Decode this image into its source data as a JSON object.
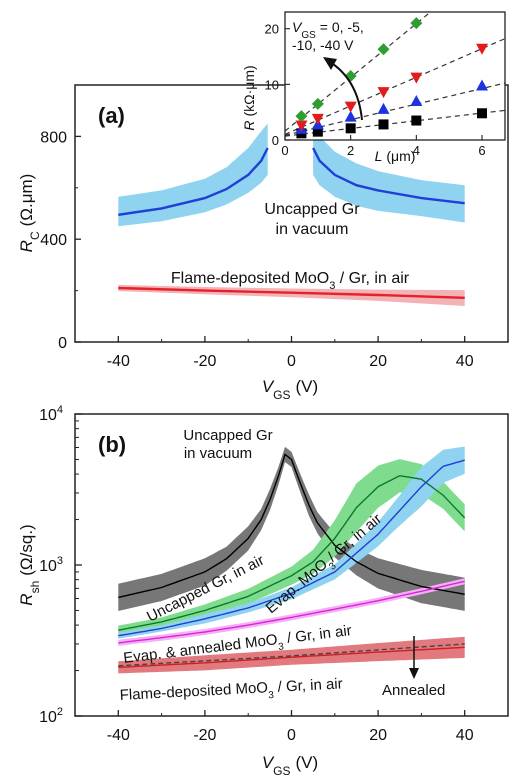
{
  "chart_data": [
    {
      "type": "line",
      "panel": "(a)",
      "xlabel_main": "V",
      "xlabel_sub": "GS",
      "xlabel_unit": "(V)",
      "ylabel_main": "R",
      "ylabel_sub": "C",
      "ylabel_unit": "(Ω.μm)",
      "xlim": [
        -50,
        50
      ],
      "ylim": [
        0,
        1000
      ],
      "xticks": [
        -40,
        -20,
        0,
        20,
        40
      ],
      "yticks": [
        0,
        400,
        800
      ],
      "series": [
        {
          "color": "#1f3fd6",
          "band_color": "#8fd3f0",
          "x": [
            -40,
            -30,
            -20,
            -15,
            -10,
            -7,
            -5.5
          ],
          "y": [
            495,
            520,
            560,
            595,
            650,
            705,
            755
          ],
          "lo": [
            450,
            470,
            505,
            535,
            580,
            620,
            650
          ],
          "hi": [
            565,
            590,
            635,
            680,
            755,
            820,
            850
          ]
        },
        {
          "color": "#1f3fd6",
          "band_color": "#8fd3f0",
          "x": [
            5,
            6.5,
            10,
            15,
            20,
            30,
            40
          ],
          "y": [
            755,
            705,
            650,
            610,
            590,
            560,
            540
          ],
          "lo": [
            650,
            610,
            565,
            530,
            510,
            490,
            465
          ],
          "hi": [
            850,
            800,
            740,
            695,
            665,
            630,
            610
          ]
        },
        {
          "color": "#e8202a",
          "band_color": "#f2b3b7",
          "x": [
            -40,
            -20,
            0,
            20,
            40
          ],
          "y": [
            210,
            200,
            192,
            183,
            172
          ],
          "lo": [
            198,
            186,
            174,
            160,
            140
          ],
          "hi": [
            222,
            214,
            208,
            204,
            202
          ]
        }
      ],
      "annotations": [
        {
          "lines": [
            "Uncapped Gr",
            "in vacuum"
          ]
        },
        {
          "text": "Flame-deposited MoO",
          "sub": "3",
          "rest": " / Gr, in air"
        }
      ],
      "inset": {
        "xlabel_main": "L",
        "xlabel_unit": "(μm)",
        "ylabel_main": "R",
        "ylabel_unit": "(kΩ·μm)",
        "xlim": [
          0,
          6.7
        ],
        "ylim": [
          0,
          23
        ],
        "xticks": [
          0,
          2,
          4,
          6
        ],
        "yticks": [
          0,
          10,
          20
        ],
        "legend_lines": [
          "= 0, -5,",
          "-10, -40 V"
        ],
        "legend_v": "V",
        "legend_sub": "GS",
        "series": [
          {
            "marker": "square",
            "color": "#000000",
            "x": [
              0.5,
              1,
              2,
              3,
              4,
              6
            ],
            "y": [
              1.2,
              1.5,
              2.1,
              2.8,
              3.5,
              4.8
            ],
            "fit": [
              0.7,
              0.69
            ]
          },
          {
            "marker": "triangle-up",
            "color": "#1d32e0",
            "x": [
              0.5,
              1,
              2,
              3,
              4,
              6
            ],
            "y": [
              2.0,
              2.8,
              4.2,
              5.6,
              7.0,
              9.8
            ],
            "fit": [
              0.85,
              1.4
            ]
          },
          {
            "marker": "triangle-down",
            "color": "#e51b1b",
            "x": [
              0.5,
              1,
              2,
              3,
              4,
              6
            ],
            "y": [
              2.6,
              3.8,
              6.0,
              8.6,
              11.2,
              16.4
            ],
            "fit": [
              1.0,
              2.57
            ]
          },
          {
            "marker": "diamond",
            "color": "#2e9e2e",
            "x": [
              0.5,
              1,
              2,
              3,
              4
            ],
            "y": [
              4.3,
              6.5,
              11.5,
              16.3,
              21.0
            ],
            "fit": [
              1.6,
              4.83
            ]
          }
        ]
      }
    },
    {
      "type": "line",
      "panel": "(b)",
      "yscale": "log",
      "xlabel_main": "V",
      "xlabel_sub": "GS",
      "xlabel_unit": "(V)",
      "ylabel_main": "R",
      "ylabel_sub": "sh",
      "ylabel_unit": "(Ω/sq.)",
      "xlim": [
        -50,
        50
      ],
      "ylim": [
        100,
        10000
      ],
      "xticks": [
        -40,
        -20,
        0,
        20,
        40
      ],
      "yticks": [
        100,
        1000,
        10000
      ],
      "ytick_base": "10",
      "ytick_exps": [
        "2",
        "3",
        "4"
      ],
      "series": [
        {
          "color": "#000000",
          "band_color": "#777777",
          "x": [
            -40,
            -30,
            -20,
            -15,
            -10,
            -7,
            -5,
            -3,
            -1.5,
            0,
            2,
            4,
            6,
            10,
            15,
            20,
            30,
            40
          ],
          "y": [
            610,
            710,
            900,
            1100,
            1500,
            2000,
            2700,
            3900,
            5400,
            5000,
            3500,
            2500,
            1900,
            1350,
            1050,
            880,
            720,
            640
          ],
          "bw": [
            0.09,
            0.09,
            0.09,
            0.08,
            0.08,
            0.07,
            0.07,
            0.06,
            0.05,
            0.05,
            0.06,
            0.07,
            0.07,
            0.08,
            0.09,
            0.1,
            0.11,
            0.11
          ]
        },
        {
          "color": "#0a7a2a",
          "band_color": "#7fdc8f",
          "x": [
            -40,
            -30,
            -20,
            -10,
            0,
            5,
            10,
            15,
            20,
            25,
            30,
            35,
            40
          ],
          "y": [
            370,
            420,
            500,
            620,
            850,
            1050,
            1500,
            2400,
            3300,
            3900,
            3700,
            2900,
            2050
          ],
          "bw": [
            0.03,
            0.03,
            0.04,
            0.05,
            0.06,
            0.08,
            0.12,
            0.16,
            0.14,
            0.11,
            0.1,
            0.09,
            0.09
          ]
        },
        {
          "color": "#1f3fd6",
          "band_color": "#8fd3f0",
          "x": [
            -40,
            -30,
            -20,
            -10,
            0,
            10,
            20,
            25,
            30,
            35,
            40
          ],
          "y": [
            340,
            380,
            440,
            520,
            650,
            900,
            1600,
            2300,
            3300,
            4500,
            4950
          ],
          "bw": [
            0.02,
            0.02,
            0.03,
            0.03,
            0.04,
            0.05,
            0.08,
            0.1,
            0.13,
            0.11,
            0.09
          ]
        },
        {
          "color": "#dd22dd",
          "band_color": "#f3b0f3",
          "x": [
            -40,
            -30,
            -20,
            -10,
            0,
            10,
            20,
            30,
            40
          ],
          "y": [
            305,
            330,
            360,
            400,
            450,
            510,
            580,
            670,
            780
          ],
          "bw": [
            0.02,
            0.02,
            0.02,
            0.02,
            0.02,
            0.02,
            0.02,
            0.02,
            0.02
          ]
        },
        {
          "color": "#cc2020",
          "band_color": "#e2797f",
          "x": [
            -40,
            -20,
            0,
            20,
            40
          ],
          "y": [
            210,
            225,
            245,
            265,
            285
          ],
          "bw": [
            0.04,
            0.05,
            0.05,
            0.06,
            0.07
          ]
        },
        {
          "color": "#444444",
          "dashed": true,
          "x": [
            -40,
            0,
            40
          ],
          "y": [
            215,
            250,
            300
          ],
          "bw": [
            0,
            0,
            0
          ]
        }
      ],
      "annotations": [
        {
          "lines": [
            "Uncapped Gr",
            "in vacuum"
          ]
        },
        {
          "text": "Uncapped Gr, in air"
        },
        {
          "text": "Evap. MoO",
          "sub": "3",
          "rest": "/ Gr, in air"
        },
        {
          "text": "Evap. & annealed MoO",
          "sub": "3",
          "rest": " / Gr, in air"
        },
        {
          "text": "Flame-deposited MoO",
          "sub": "3",
          "rest": " / Gr, in air"
        },
        {
          "text": "Annealed"
        }
      ]
    }
  ]
}
